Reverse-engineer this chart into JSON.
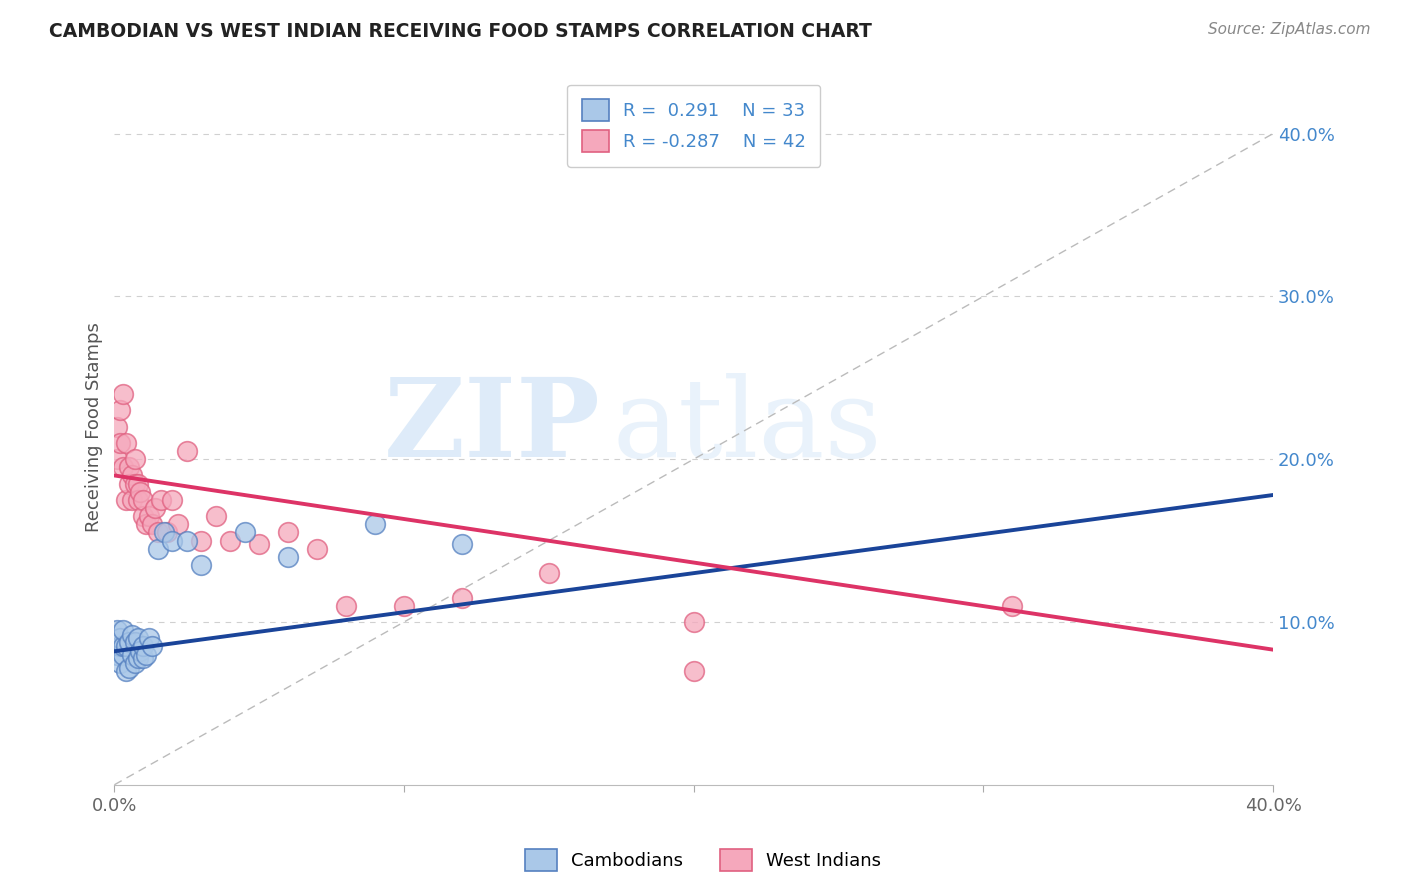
{
  "title": "CAMBODIAN VS WEST INDIAN RECEIVING FOOD STAMPS CORRELATION CHART",
  "source": "Source: ZipAtlas.com",
  "xlabel": "",
  "ylabel": "Receiving Food Stamps",
  "xmin": 0.0,
  "xmax": 0.4,
  "ymin": 0.0,
  "ymax": 0.44,
  "y_ticks_right": [
    0.1,
    0.2,
    0.3,
    0.4
  ],
  "y_tick_labels_right": [
    "10.0%",
    "20.0%",
    "30.0%",
    "40.0%"
  ],
  "cambodian_color": "#aac8e8",
  "west_indian_color": "#f5a8bc",
  "cambodian_edge": "#5580c0",
  "west_indian_edge": "#e06080",
  "trend_cambodian_color": "#1a4499",
  "trend_west_indian_color": "#dd3366",
  "ref_line_color": "#bbbbbb",
  "grid_color": "#d0d0d0",
  "legend_label_cambodian": "Cambodians",
  "legend_label_west_indian": "West Indians",
  "watermark_zip": "ZIP",
  "watermark_atlas": "atlas",
  "blue_num_color": "#4488cc",
  "title_color": "#222222",
  "source_color": "#888888",
  "ylabel_color": "#555555",
  "tick_color": "#666666",
  "cam_trend_start_y": 0.082,
  "cam_trend_end_y": 0.178,
  "wi_trend_start_y": 0.19,
  "wi_trend_end_y": 0.083,
  "cambodian_x": [
    0.001,
    0.001,
    0.002,
    0.002,
    0.002,
    0.003,
    0.003,
    0.003,
    0.004,
    0.004,
    0.005,
    0.005,
    0.006,
    0.006,
    0.007,
    0.007,
    0.008,
    0.008,
    0.009,
    0.01,
    0.01,
    0.011,
    0.012,
    0.013,
    0.015,
    0.017,
    0.02,
    0.025,
    0.03,
    0.06,
    0.09,
    0.12,
    0.045
  ],
  "cambodian_y": [
    0.08,
    0.095,
    0.075,
    0.085,
    0.09,
    0.08,
    0.085,
    0.095,
    0.07,
    0.085,
    0.072,
    0.088,
    0.08,
    0.092,
    0.075,
    0.088,
    0.078,
    0.09,
    0.082,
    0.078,
    0.085,
    0.08,
    0.09,
    0.085,
    0.145,
    0.155,
    0.15,
    0.15,
    0.135,
    0.14,
    0.16,
    0.148,
    0.155
  ],
  "west_indian_x": [
    0.001,
    0.001,
    0.002,
    0.002,
    0.003,
    0.003,
    0.004,
    0.004,
    0.005,
    0.005,
    0.006,
    0.006,
    0.007,
    0.007,
    0.008,
    0.008,
    0.009,
    0.01,
    0.01,
    0.011,
    0.012,
    0.013,
    0.014,
    0.015,
    0.016,
    0.018,
    0.02,
    0.022,
    0.025,
    0.03,
    0.035,
    0.04,
    0.05,
    0.06,
    0.07,
    0.08,
    0.1,
    0.12,
    0.15,
    0.2,
    0.31,
    0.2
  ],
  "west_indian_y": [
    0.22,
    0.2,
    0.23,
    0.21,
    0.24,
    0.195,
    0.21,
    0.175,
    0.195,
    0.185,
    0.19,
    0.175,
    0.2,
    0.185,
    0.185,
    0.175,
    0.18,
    0.165,
    0.175,
    0.16,
    0.165,
    0.16,
    0.17,
    0.155,
    0.175,
    0.155,
    0.175,
    0.16,
    0.205,
    0.15,
    0.165,
    0.15,
    0.148,
    0.155,
    0.145,
    0.11,
    0.11,
    0.115,
    0.13,
    0.1,
    0.11,
    0.07
  ]
}
